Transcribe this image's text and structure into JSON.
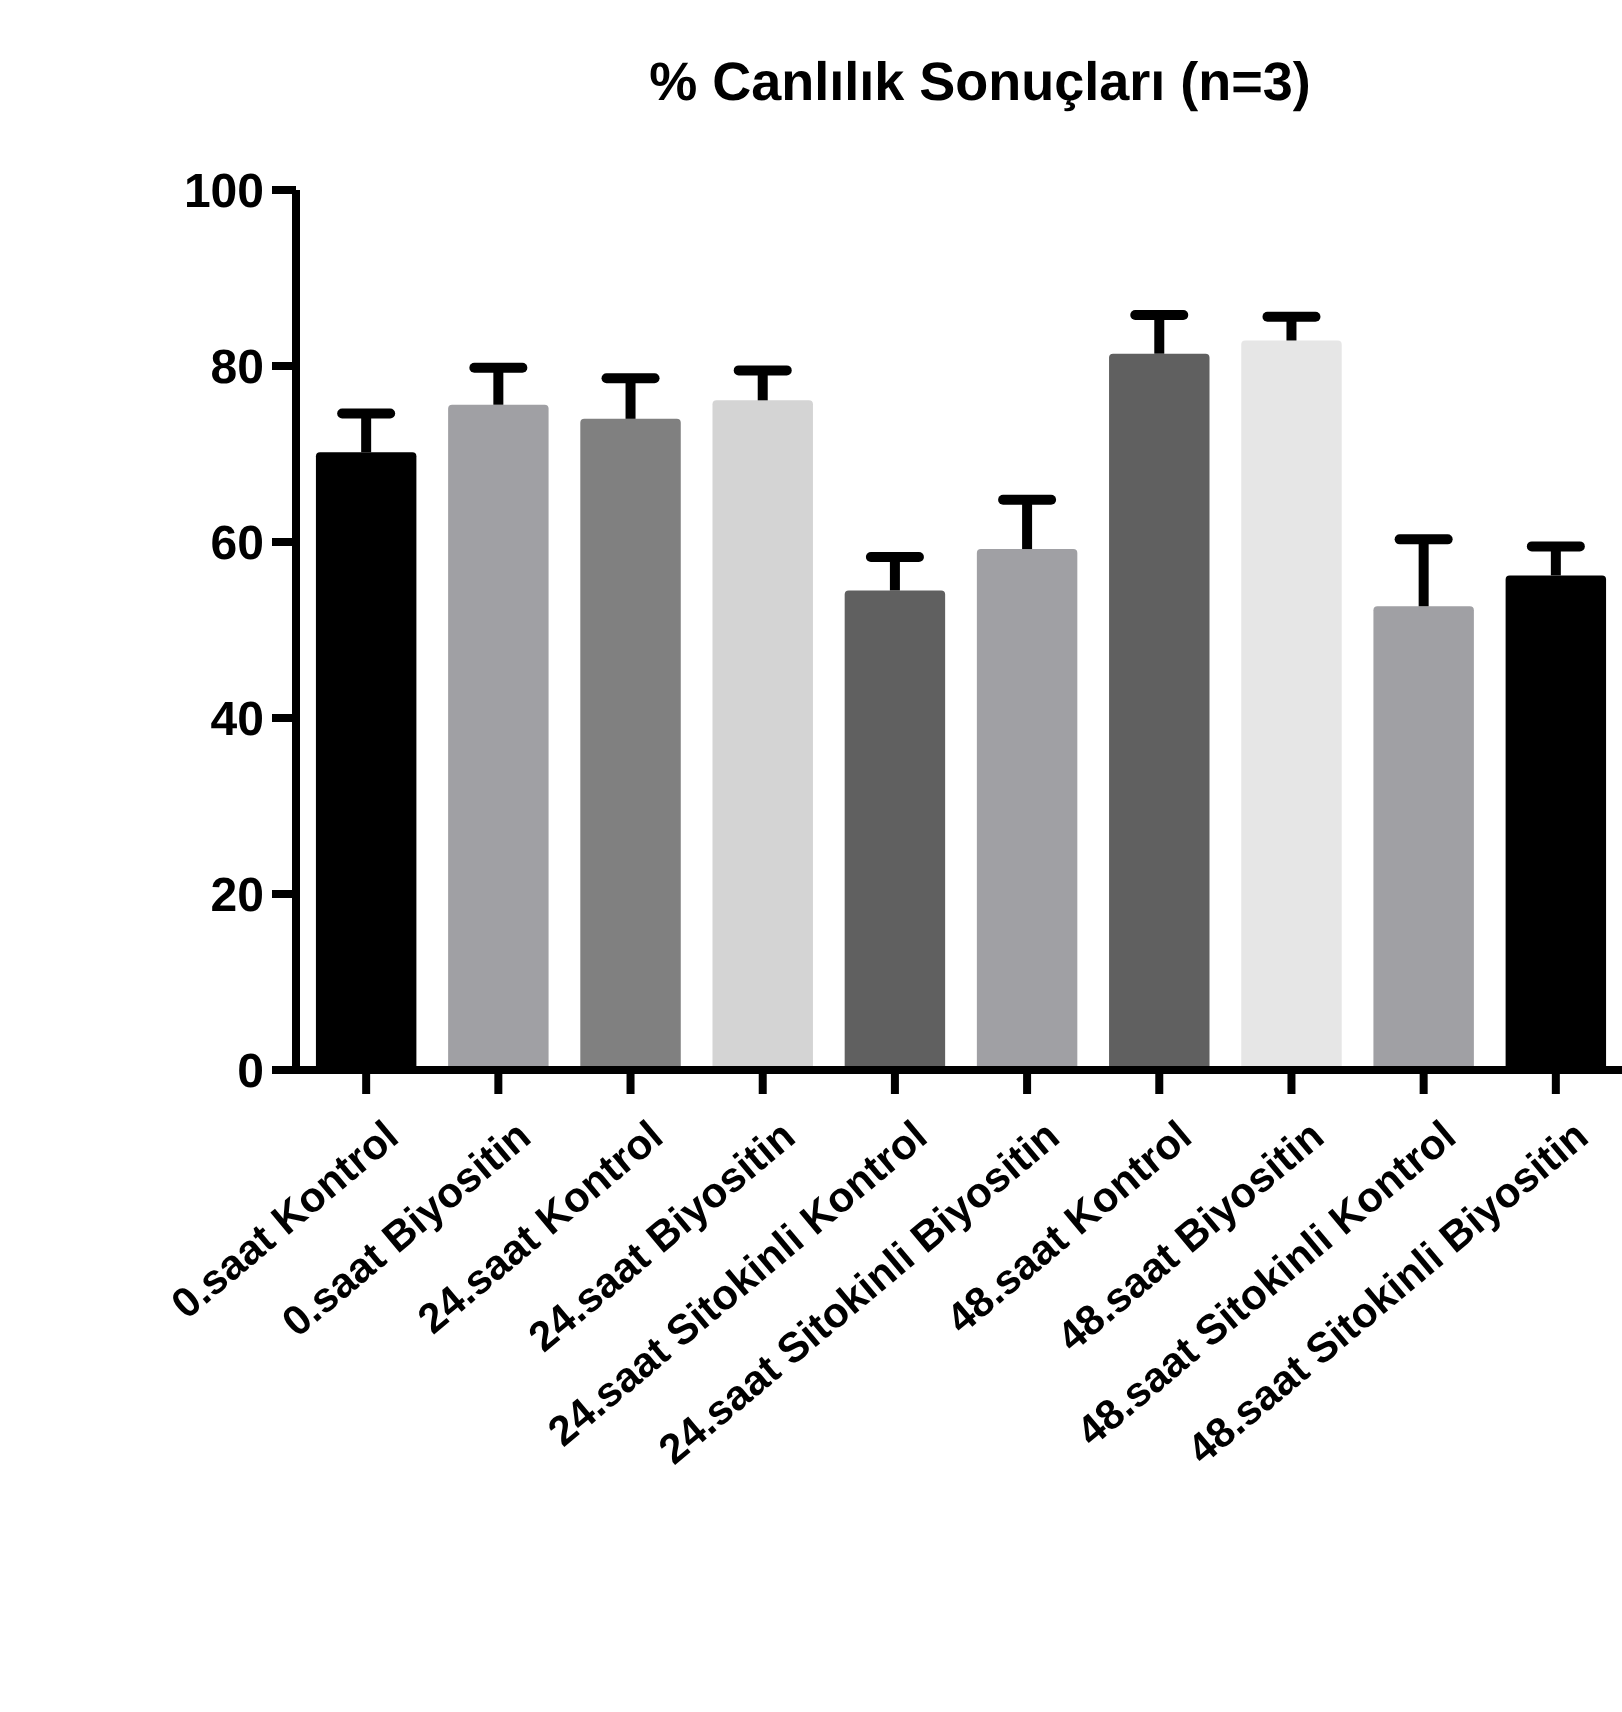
{
  "chart_data": {
    "type": "bar",
    "title": "% Canlılık Sonuçları (n=3)",
    "categories": [
      "0.saat Kontrol",
      "0.saat Biyositin",
      "24.saat Kontrol",
      "24.saat Biyositin",
      "24.saat Sitokinli Kontrol",
      "24.saat Sitokinli Biyositin",
      "48.saat Kontrol",
      "48.saat Biyositin",
      "48.saat Sitokinli Kontrol",
      "48.saat Sitokinli Biyositin"
    ],
    "values": [
      70.2,
      75.6,
      74.0,
      76.1,
      54.5,
      59.2,
      81.4,
      82.9,
      52.7,
      56.2
    ],
    "errors": [
      [
        70.2,
        74.6
      ],
      [
        75.6,
        79.8
      ],
      [
        74.0,
        78.6
      ],
      [
        76.1,
        79.5
      ],
      [
        54.5,
        58.3
      ],
      [
        59.2,
        64.8
      ],
      [
        81.4,
        85.8
      ],
      [
        82.9,
        85.6
      ],
      [
        52.7,
        60.3
      ],
      [
        56.2,
        59.5
      ]
    ],
    "colors": [
      "#000000",
      "#a0a0a4",
      "#808080",
      "#d4d4d4",
      "#606060",
      "#a0a0a4",
      "#606060",
      "#e6e6e6",
      "#a0a0a4",
      "#000000"
    ],
    "ylim": [
      0,
      100
    ],
    "yticks": [
      0,
      20,
      40,
      60,
      80,
      100
    ],
    "grid": false
  }
}
